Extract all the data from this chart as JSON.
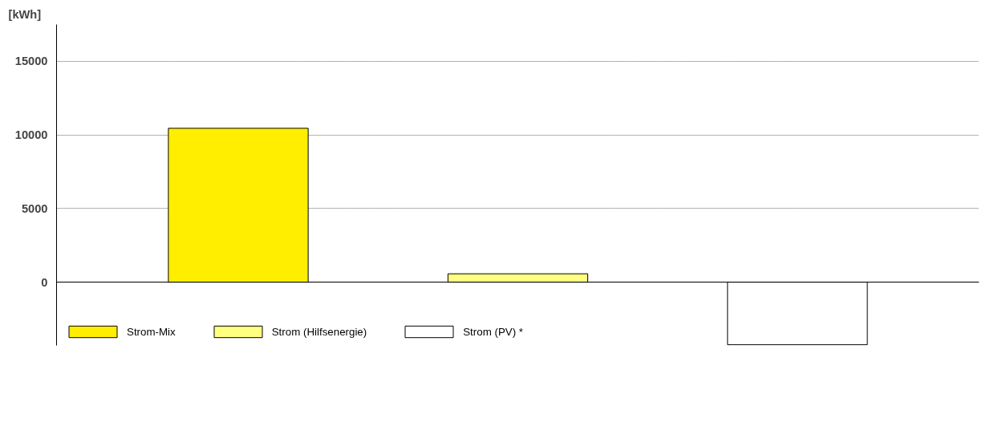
{
  "chart_data": {
    "type": "bar",
    "ylabel": "[kWh]",
    "categories": [
      null,
      null,
      null
    ],
    "series": [
      {
        "name": "Strom-Mix",
        "color": "#ffee00",
        "values": [
          10450,
          null,
          null
        ]
      },
      {
        "name": "Strom (Hilfsenergie)",
        "color": "#ffff80",
        "values": [
          null,
          570,
          null
        ]
      },
      {
        "name": "Strom (PV) *",
        "color": "#ffffff",
        "values": [
          null,
          null,
          -4250
        ]
      }
    ],
    "ylim": [
      -4300,
      17500
    ],
    "yticks": [
      0,
      5000,
      10000,
      15000
    ],
    "grid": "y",
    "legend": "bottom left"
  }
}
